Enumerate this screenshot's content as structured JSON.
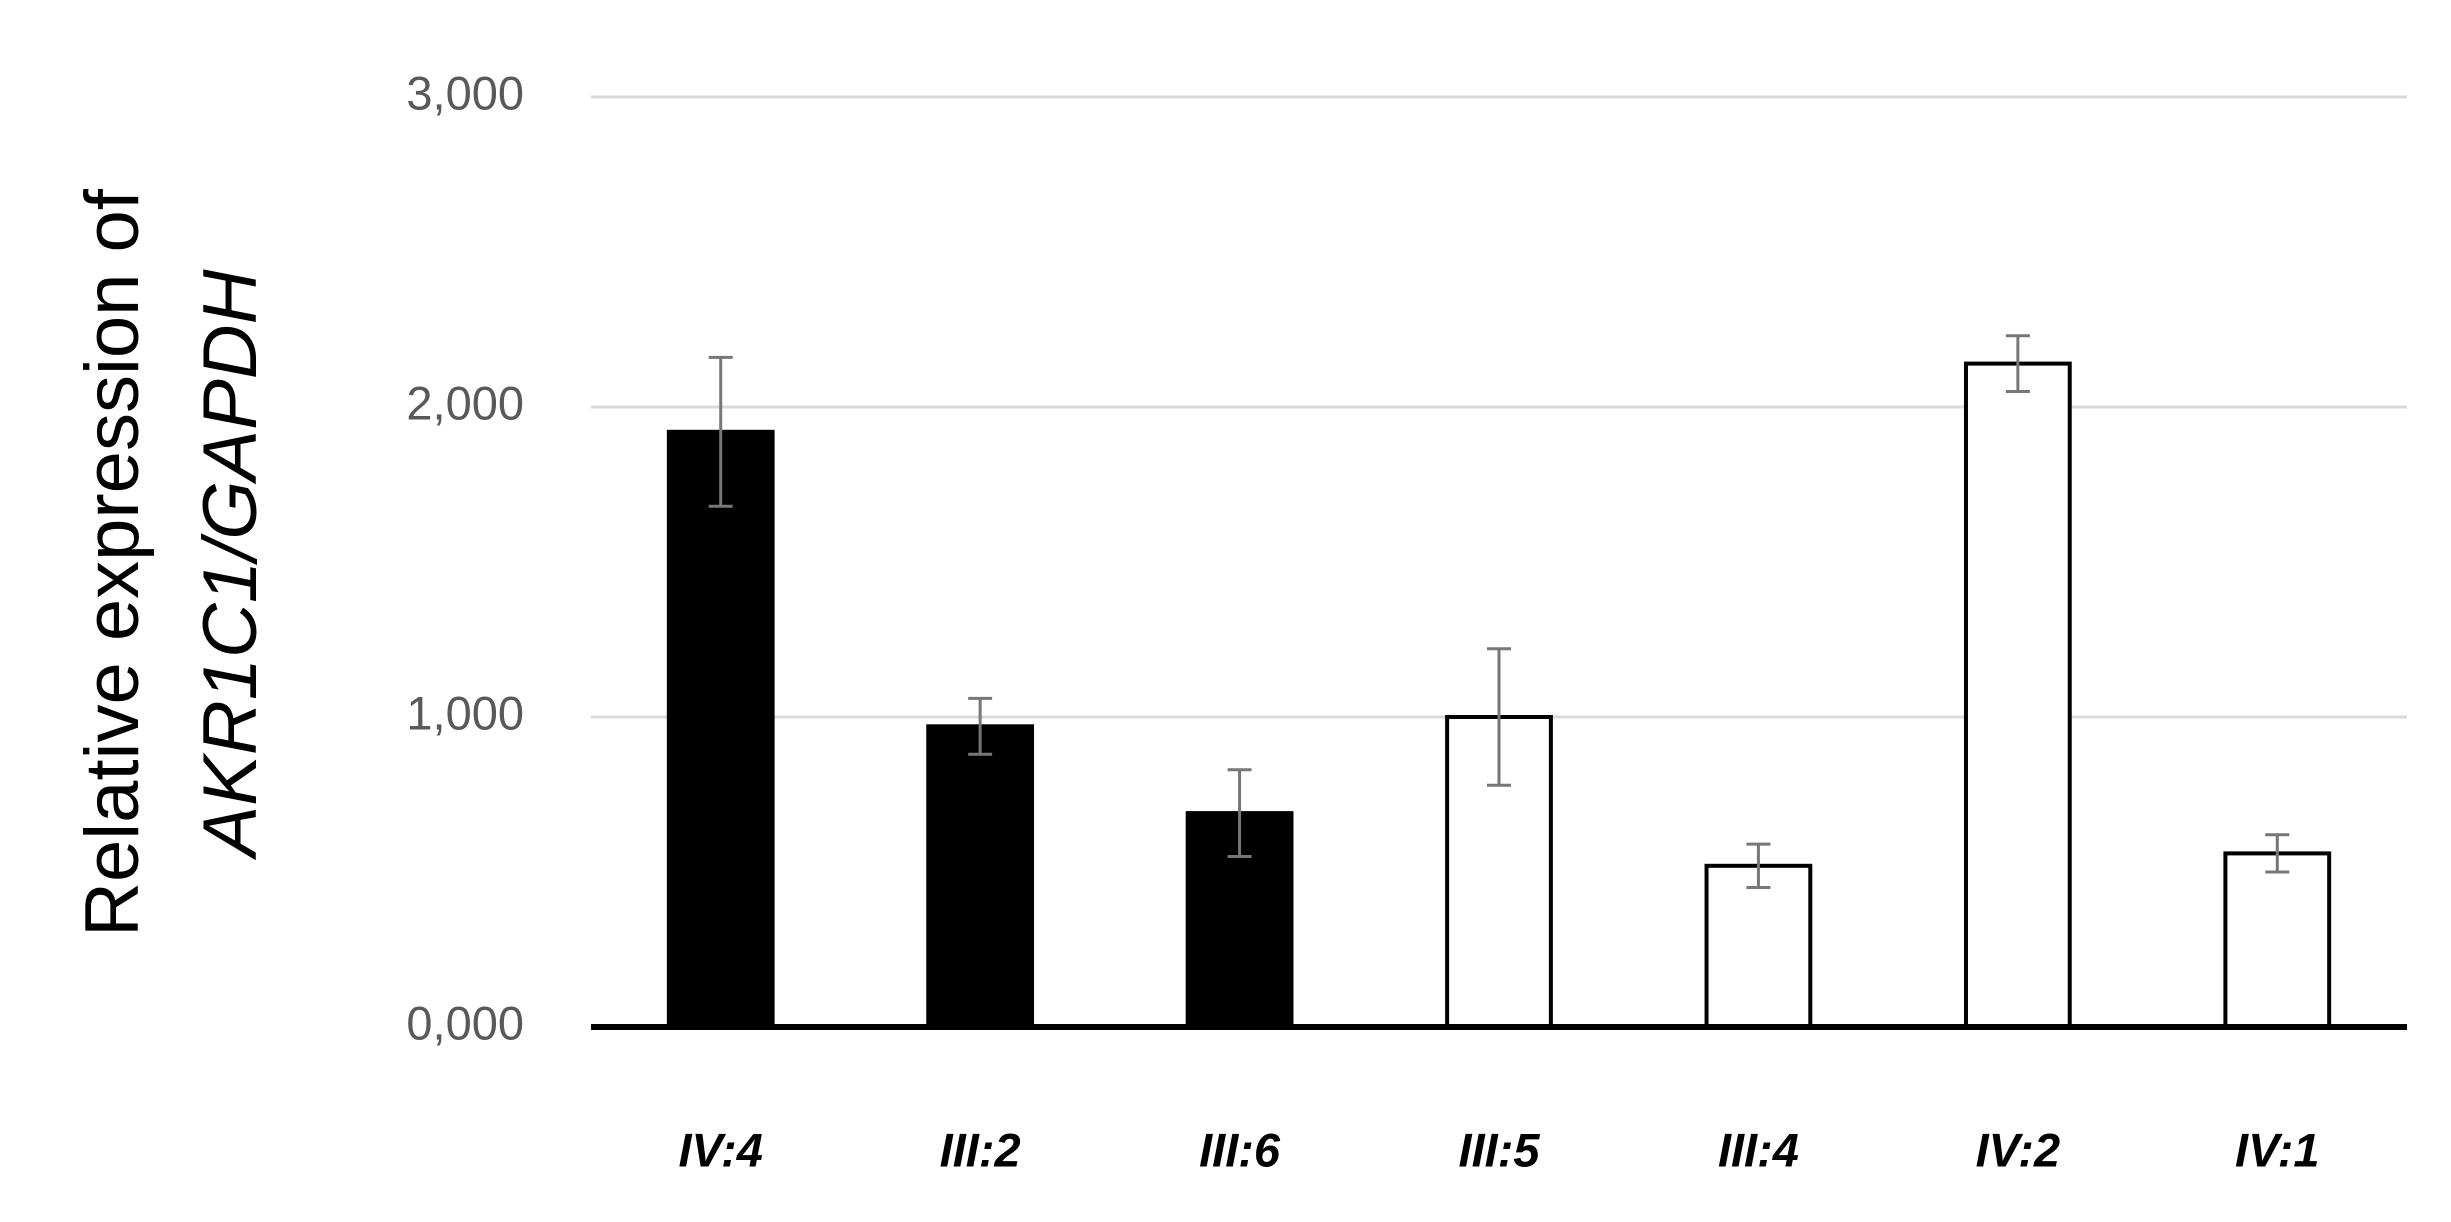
{
  "chart_data": {
    "type": "bar",
    "ylabel_lines": [
      "Relative expression of",
      "AKR1C1/GAPDH"
    ],
    "categories": [
      "IV:4",
      "III:2",
      "III:6",
      "III:5",
      "III:4",
      "IV:2",
      "IV:1"
    ],
    "values": [
      1.92,
      0.97,
      0.69,
      1.0,
      0.52,
      2.14,
      0.56
    ],
    "errors": [
      0.24,
      0.09,
      0.14,
      0.22,
      0.07,
      0.09,
      0.06
    ],
    "colors": [
      "#000000",
      "#000000",
      "#000000",
      "#ffffff",
      "#ffffff",
      "#ffffff",
      "#ffffff"
    ],
    "edge_color": "#000000",
    "error_color": "#777777",
    "ylim": [
      0,
      3
    ],
    "yticks": [
      {
        "value": 0,
        "label": "0,000"
      },
      {
        "value": 1,
        "label": "1,000"
      },
      {
        "value": 2,
        "label": "2,000"
      },
      {
        "value": 3,
        "label": "3,000"
      }
    ],
    "grid": true
  }
}
